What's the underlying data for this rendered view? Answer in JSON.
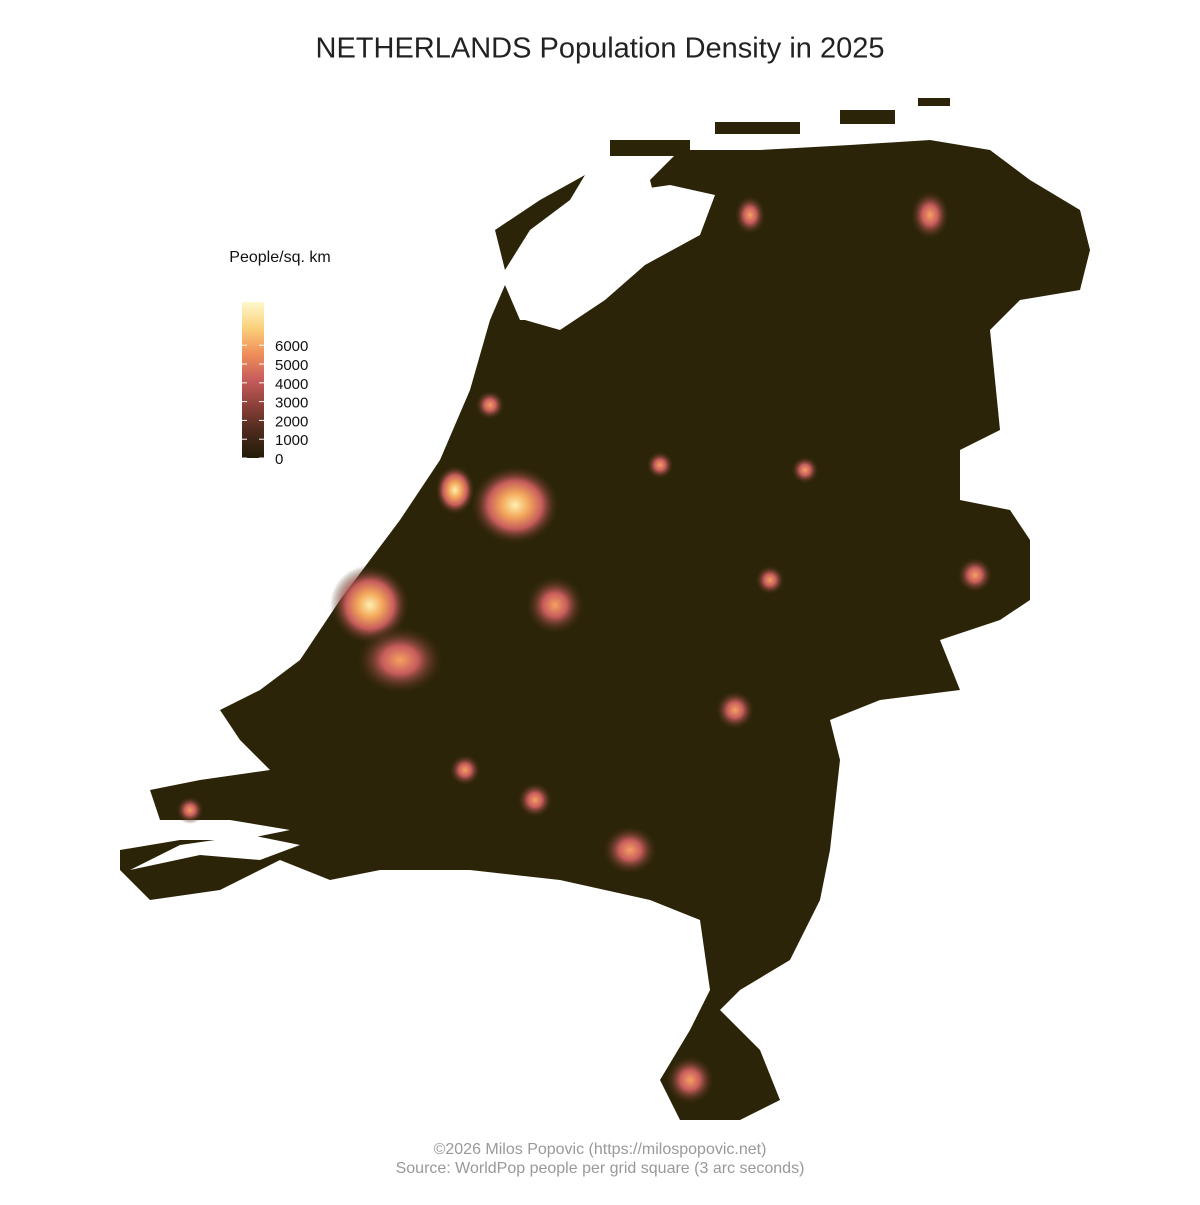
{
  "title": "NETHERLANDS Population Density in 2025",
  "legend": {
    "title": "People/sq. km",
    "range": [
      0,
      8300
    ],
    "ticks": [
      0,
      1000,
      2000,
      3000,
      4000,
      5000,
      6000
    ],
    "colors": [
      "#231c08",
      "#4a2a1c",
      "#8a4038",
      "#c65c5c",
      "#ef8e5a",
      "#fbd07a",
      "#fdf8cc"
    ]
  },
  "caption": [
    "©2026 Milos Popovic (https://milospopovic.net)",
    "Source: WorldPop people per grid square (3 arc seconds)"
  ]
}
